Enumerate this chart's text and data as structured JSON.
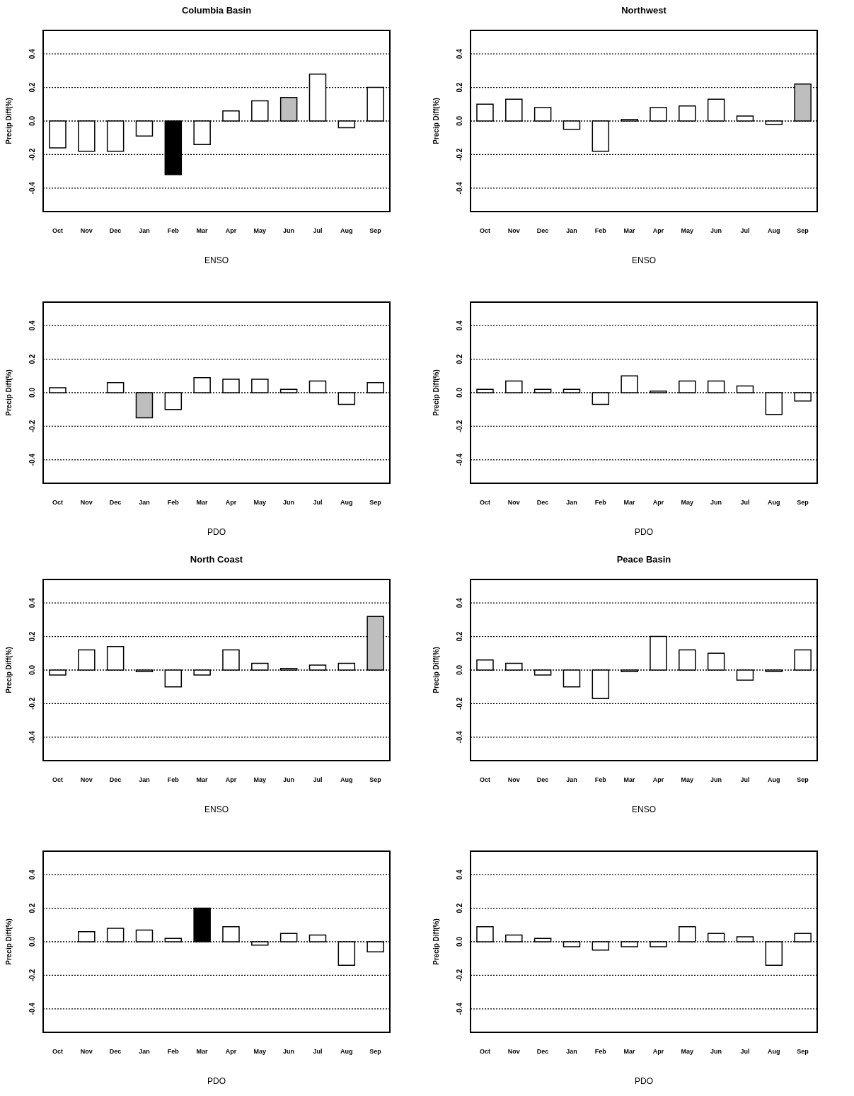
{
  "chart_data": [
    {
      "type": "bar",
      "title": "Columbia Basin",
      "xlabel": "ENSO",
      "ylabel": "Precip Diff(%)",
      "categories": [
        "Oct",
        "Nov",
        "Dec",
        "Jan",
        "Feb",
        "Mar",
        "Apr",
        "May",
        "Jun",
        "Jul",
        "Aug",
        "Sep"
      ],
      "values": [
        -0.16,
        -0.18,
        -0.18,
        -0.09,
        -0.32,
        -0.14,
        0.06,
        0.12,
        0.14,
        0.28,
        -0.04,
        0.2
      ],
      "colors": [
        "#ffffff",
        "#ffffff",
        "#ffffff",
        "#ffffff",
        "#000000",
        "#ffffff",
        "#ffffff",
        "#ffffff",
        "#bebebe",
        "#ffffff",
        "#ffffff",
        "#ffffff"
      ],
      "ylim": [
        -0.54,
        0.54
      ],
      "yticks": [
        {
          "value": -0.4,
          "label": "-0.4"
        },
        {
          "value": -0.2,
          "label": "-0.2"
        },
        {
          "value": 0,
          "label": "0.0"
        },
        {
          "value": 0.2,
          "label": "0.2"
        },
        {
          "value": 0.4,
          "label": "0.4"
        }
      ],
      "grid": "y"
    },
    {
      "type": "bar",
      "title": "Northwest",
      "xlabel": "ENSO",
      "ylabel": "Precip Diff(%)",
      "categories": [
        "Oct",
        "Nov",
        "Dec",
        "Jan",
        "Feb",
        "Mar",
        "Apr",
        "May",
        "Jun",
        "Jul",
        "Aug",
        "Sep"
      ],
      "values": [
        0.1,
        0.13,
        0.08,
        -0.05,
        -0.18,
        0.01,
        0.08,
        0.09,
        0.13,
        0.03,
        -0.02,
        0.22
      ],
      "colors": [
        "#ffffff",
        "#ffffff",
        "#ffffff",
        "#ffffff",
        "#ffffff",
        "#ffffff",
        "#ffffff",
        "#ffffff",
        "#ffffff",
        "#ffffff",
        "#ffffff",
        "#bebebe"
      ],
      "ylim": [
        -0.54,
        0.54
      ],
      "yticks": [
        {
          "value": -0.4,
          "label": "-0.4"
        },
        {
          "value": -0.2,
          "label": "-0.2"
        },
        {
          "value": 0,
          "label": "0.0"
        },
        {
          "value": 0.2,
          "label": "0.2"
        },
        {
          "value": 0.4,
          "label": "0.4"
        }
      ],
      "grid": "y"
    },
    {
      "type": "bar",
      "xlabel": "PDO",
      "ylabel": "Precip Diff(%)",
      "categories": [
        "Oct",
        "Nov",
        "Dec",
        "Jan",
        "Feb",
        "Mar",
        "Apr",
        "May",
        "Jun",
        "Jul",
        "Aug",
        "Sep"
      ],
      "values": [
        0.03,
        0.0,
        0.06,
        -0.15,
        -0.1,
        0.09,
        0.08,
        0.08,
        0.02,
        0.07,
        -0.07,
        0.06
      ],
      "colors": [
        "#ffffff",
        "#ffffff",
        "#ffffff",
        "#bebebe",
        "#ffffff",
        "#ffffff",
        "#ffffff",
        "#ffffff",
        "#ffffff",
        "#ffffff",
        "#ffffff",
        "#ffffff"
      ],
      "ylim": [
        -0.54,
        0.54
      ],
      "yticks": [
        {
          "value": -0.4,
          "label": "-0.4"
        },
        {
          "value": -0.2,
          "label": "-0.2"
        },
        {
          "value": 0,
          "label": "0.0"
        },
        {
          "value": 0.2,
          "label": "0.2"
        },
        {
          "value": 0.4,
          "label": "0.4"
        }
      ],
      "grid": "y"
    },
    {
      "type": "bar",
      "xlabel": "PDO",
      "ylabel": "Precip Diff(%)",
      "categories": [
        "Oct",
        "Nov",
        "Dec",
        "Jan",
        "Feb",
        "Mar",
        "Apr",
        "May",
        "Jun",
        "Jul",
        "Aug",
        "Sep"
      ],
      "values": [
        0.02,
        0.07,
        0.02,
        0.02,
        -0.07,
        0.1,
        0.01,
        0.07,
        0.07,
        0.04,
        -0.13,
        -0.05
      ],
      "colors": [
        "#ffffff",
        "#ffffff",
        "#ffffff",
        "#ffffff",
        "#ffffff",
        "#ffffff",
        "#ffffff",
        "#ffffff",
        "#ffffff",
        "#ffffff",
        "#ffffff",
        "#ffffff"
      ],
      "ylim": [
        -0.54,
        0.54
      ],
      "yticks": [
        {
          "value": -0.4,
          "label": "-0.4"
        },
        {
          "value": -0.2,
          "label": "-0.2"
        },
        {
          "value": 0,
          "label": "0.0"
        },
        {
          "value": 0.2,
          "label": "0.2"
        },
        {
          "value": 0.4,
          "label": "0.4"
        }
      ],
      "grid": "y"
    },
    {
      "type": "bar",
      "title": "North Coast",
      "xlabel": "ENSO",
      "ylabel": "Precip Diff(%)",
      "categories": [
        "Oct",
        "Nov",
        "Dec",
        "Jan",
        "Feb",
        "Mar",
        "Apr",
        "May",
        "Jun",
        "Jul",
        "Aug",
        "Sep"
      ],
      "values": [
        -0.03,
        0.12,
        0.14,
        -0.01,
        -0.1,
        -0.03,
        0.12,
        0.04,
        0.01,
        0.03,
        0.04,
        0.32
      ],
      "colors": [
        "#ffffff",
        "#ffffff",
        "#ffffff",
        "#ffffff",
        "#ffffff",
        "#ffffff",
        "#ffffff",
        "#ffffff",
        "#ffffff",
        "#ffffff",
        "#ffffff",
        "#bebebe"
      ],
      "ylim": [
        -0.54,
        0.54
      ],
      "yticks": [
        {
          "value": -0.4,
          "label": "-0.4"
        },
        {
          "value": -0.2,
          "label": "-0.2"
        },
        {
          "value": 0,
          "label": "0.0"
        },
        {
          "value": 0.2,
          "label": "0.2"
        },
        {
          "value": 0.4,
          "label": "0.4"
        }
      ],
      "grid": "y"
    },
    {
      "type": "bar",
      "title": "Peace Basin",
      "xlabel": "ENSO",
      "ylabel": "Precip Diff(%)",
      "categories": [
        "Oct",
        "Nov",
        "Dec",
        "Jan",
        "Feb",
        "Mar",
        "Apr",
        "May",
        "Jun",
        "Jul",
        "Aug",
        "Sep"
      ],
      "values": [
        0.06,
        0.04,
        -0.03,
        -0.1,
        -0.17,
        -0.01,
        0.2,
        0.12,
        0.1,
        -0.06,
        -0.01,
        0.12
      ],
      "colors": [
        "#ffffff",
        "#ffffff",
        "#ffffff",
        "#ffffff",
        "#ffffff",
        "#ffffff",
        "#ffffff",
        "#ffffff",
        "#ffffff",
        "#ffffff",
        "#ffffff",
        "#ffffff"
      ],
      "ylim": [
        -0.54,
        0.54
      ],
      "yticks": [
        {
          "value": -0.4,
          "label": "-0.4"
        },
        {
          "value": -0.2,
          "label": "-0.2"
        },
        {
          "value": 0,
          "label": "0.0"
        },
        {
          "value": 0.2,
          "label": "0.2"
        },
        {
          "value": 0.4,
          "label": "0.4"
        }
      ],
      "grid": "y"
    },
    {
      "type": "bar",
      "xlabel": "PDO",
      "ylabel": "Precip Diff(%)",
      "categories": [
        "Oct",
        "Nov",
        "Dec",
        "Jan",
        "Feb",
        "Mar",
        "Apr",
        "May",
        "Jun",
        "Jul",
        "Aug",
        "Sep"
      ],
      "values": [
        0.0,
        0.06,
        0.08,
        0.07,
        0.02,
        0.2,
        0.09,
        -0.02,
        0.05,
        0.04,
        -0.14,
        -0.06
      ],
      "colors": [
        "#ffffff",
        "#ffffff",
        "#ffffff",
        "#ffffff",
        "#ffffff",
        "#000000",
        "#ffffff",
        "#ffffff",
        "#ffffff",
        "#ffffff",
        "#ffffff",
        "#ffffff"
      ],
      "ylim": [
        -0.54,
        0.54
      ],
      "yticks": [
        {
          "value": -0.4,
          "label": "-0.4"
        },
        {
          "value": -0.2,
          "label": "-0.2"
        },
        {
          "value": 0,
          "label": "0.0"
        },
        {
          "value": 0.2,
          "label": "0.2"
        },
        {
          "value": 0.4,
          "label": "0.4"
        }
      ],
      "grid": "y"
    },
    {
      "type": "bar",
      "xlabel": "PDO",
      "ylabel": "Precip Diff(%)",
      "categories": [
        "Oct",
        "Nov",
        "Dec",
        "Jan",
        "Feb",
        "Mar",
        "Apr",
        "May",
        "Jun",
        "Jul",
        "Aug",
        "Sep"
      ],
      "values": [
        0.09,
        0.04,
        0.02,
        -0.03,
        -0.05,
        -0.03,
        -0.03,
        0.09,
        0.05,
        0.03,
        -0.14,
        0.05
      ],
      "colors": [
        "#ffffff",
        "#ffffff",
        "#ffffff",
        "#ffffff",
        "#ffffff",
        "#ffffff",
        "#ffffff",
        "#ffffff",
        "#ffffff",
        "#ffffff",
        "#ffffff",
        "#ffffff"
      ],
      "ylim": [
        -0.54,
        0.54
      ],
      "yticks": [
        {
          "value": -0.4,
          "label": "-0.4"
        },
        {
          "value": -0.2,
          "label": "-0.2"
        },
        {
          "value": 0,
          "label": "0.0"
        },
        {
          "value": 0.2,
          "label": "0.2"
        },
        {
          "value": 0.4,
          "label": "0.4"
        }
      ],
      "grid": "y"
    }
  ]
}
